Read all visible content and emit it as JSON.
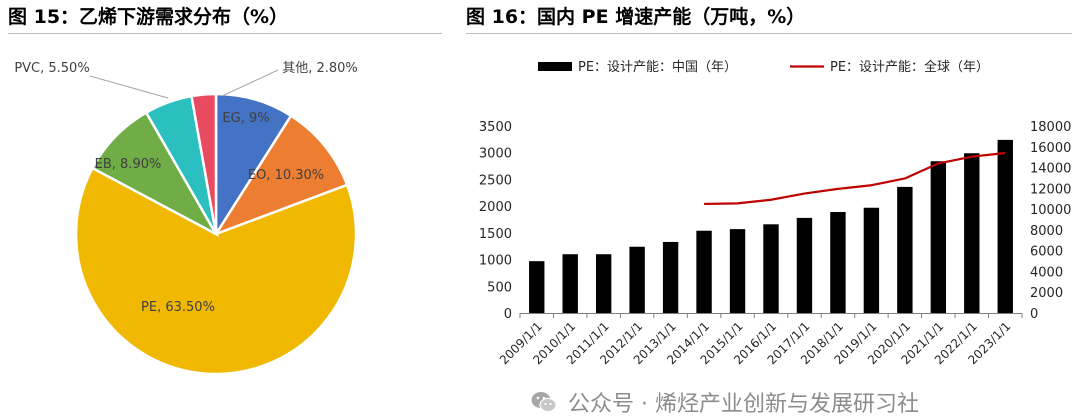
{
  "titles": {
    "left": "图 15：乙烯下游需求分布（%）",
    "right": "图 16：国内 PE 增速产能（万吨，%）"
  },
  "watermark": {
    "text": "公众号 · 烯烃产业创新与发展研习社",
    "icon": "wechat-icon"
  },
  "chart_data": [
    {
      "type": "pie",
      "title": "图 15：乙烯下游需求分布（%）",
      "slices": [
        {
          "label": "EG, 9%",
          "name": "EG",
          "value": 9.0,
          "color": "#4472C4"
        },
        {
          "label": "EO, 10.30%",
          "name": "EO",
          "value": 10.3,
          "color": "#ED7D31"
        },
        {
          "label": "PE, 63.50%",
          "name": "PE",
          "value": 63.5,
          "color": "#F0B800"
        },
        {
          "label": "EB, 8.90%",
          "name": "EB",
          "value": 8.9,
          "color": "#70AD47"
        },
        {
          "label": "PVC, 5.50%",
          "name": "PVC",
          "value": 5.5,
          "color": "#2BBFBF"
        },
        {
          "label": "其他, 2.80%",
          "name": "其他",
          "value": 2.8,
          "color": "#E84A5F"
        }
      ],
      "start": "top, clockwise"
    },
    {
      "type": "bar+line",
      "title": "图 16：国内 PE 增速产能（万吨，%）",
      "categories": [
        "2009/1/1",
        "2010/1/1",
        "2011/1/1",
        "2012/1/1",
        "2013/1/1",
        "2014/1/1",
        "2015/1/1",
        "2016/1/1",
        "2017/1/1",
        "2018/1/1",
        "2019/1/1",
        "2020/1/1",
        "2021/1/1",
        "2022/1/1",
        "2023/1/1"
      ],
      "series": [
        {
          "name": "PE：设计产能：中国（年）",
          "type": "bar",
          "axis": "left",
          "color": "#000000",
          "values": [
            970,
            1100,
            1100,
            1240,
            1330,
            1540,
            1570,
            1660,
            1780,
            1890,
            1970,
            2360,
            2840,
            2990,
            3240
          ]
        },
        {
          "name": "PE：设计产能：全球（年）",
          "type": "line",
          "axis": "right",
          "color": "#C00000",
          "values": [
            null,
            null,
            null,
            null,
            null,
            10500,
            10550,
            10900,
            11500,
            11950,
            12300,
            12950,
            14400,
            15050,
            15400
          ]
        }
      ],
      "y_left": {
        "min": 0,
        "max": 3500,
        "ticks": [
          0,
          500,
          1000,
          1500,
          2000,
          2500,
          3000,
          3500
        ]
      },
      "y_right": {
        "min": 0,
        "max": 18000,
        "ticks": [
          0,
          2000,
          4000,
          6000,
          8000,
          10000,
          12000,
          14000,
          16000,
          18000
        ]
      },
      "grid": false,
      "legend_position": "top"
    }
  ]
}
